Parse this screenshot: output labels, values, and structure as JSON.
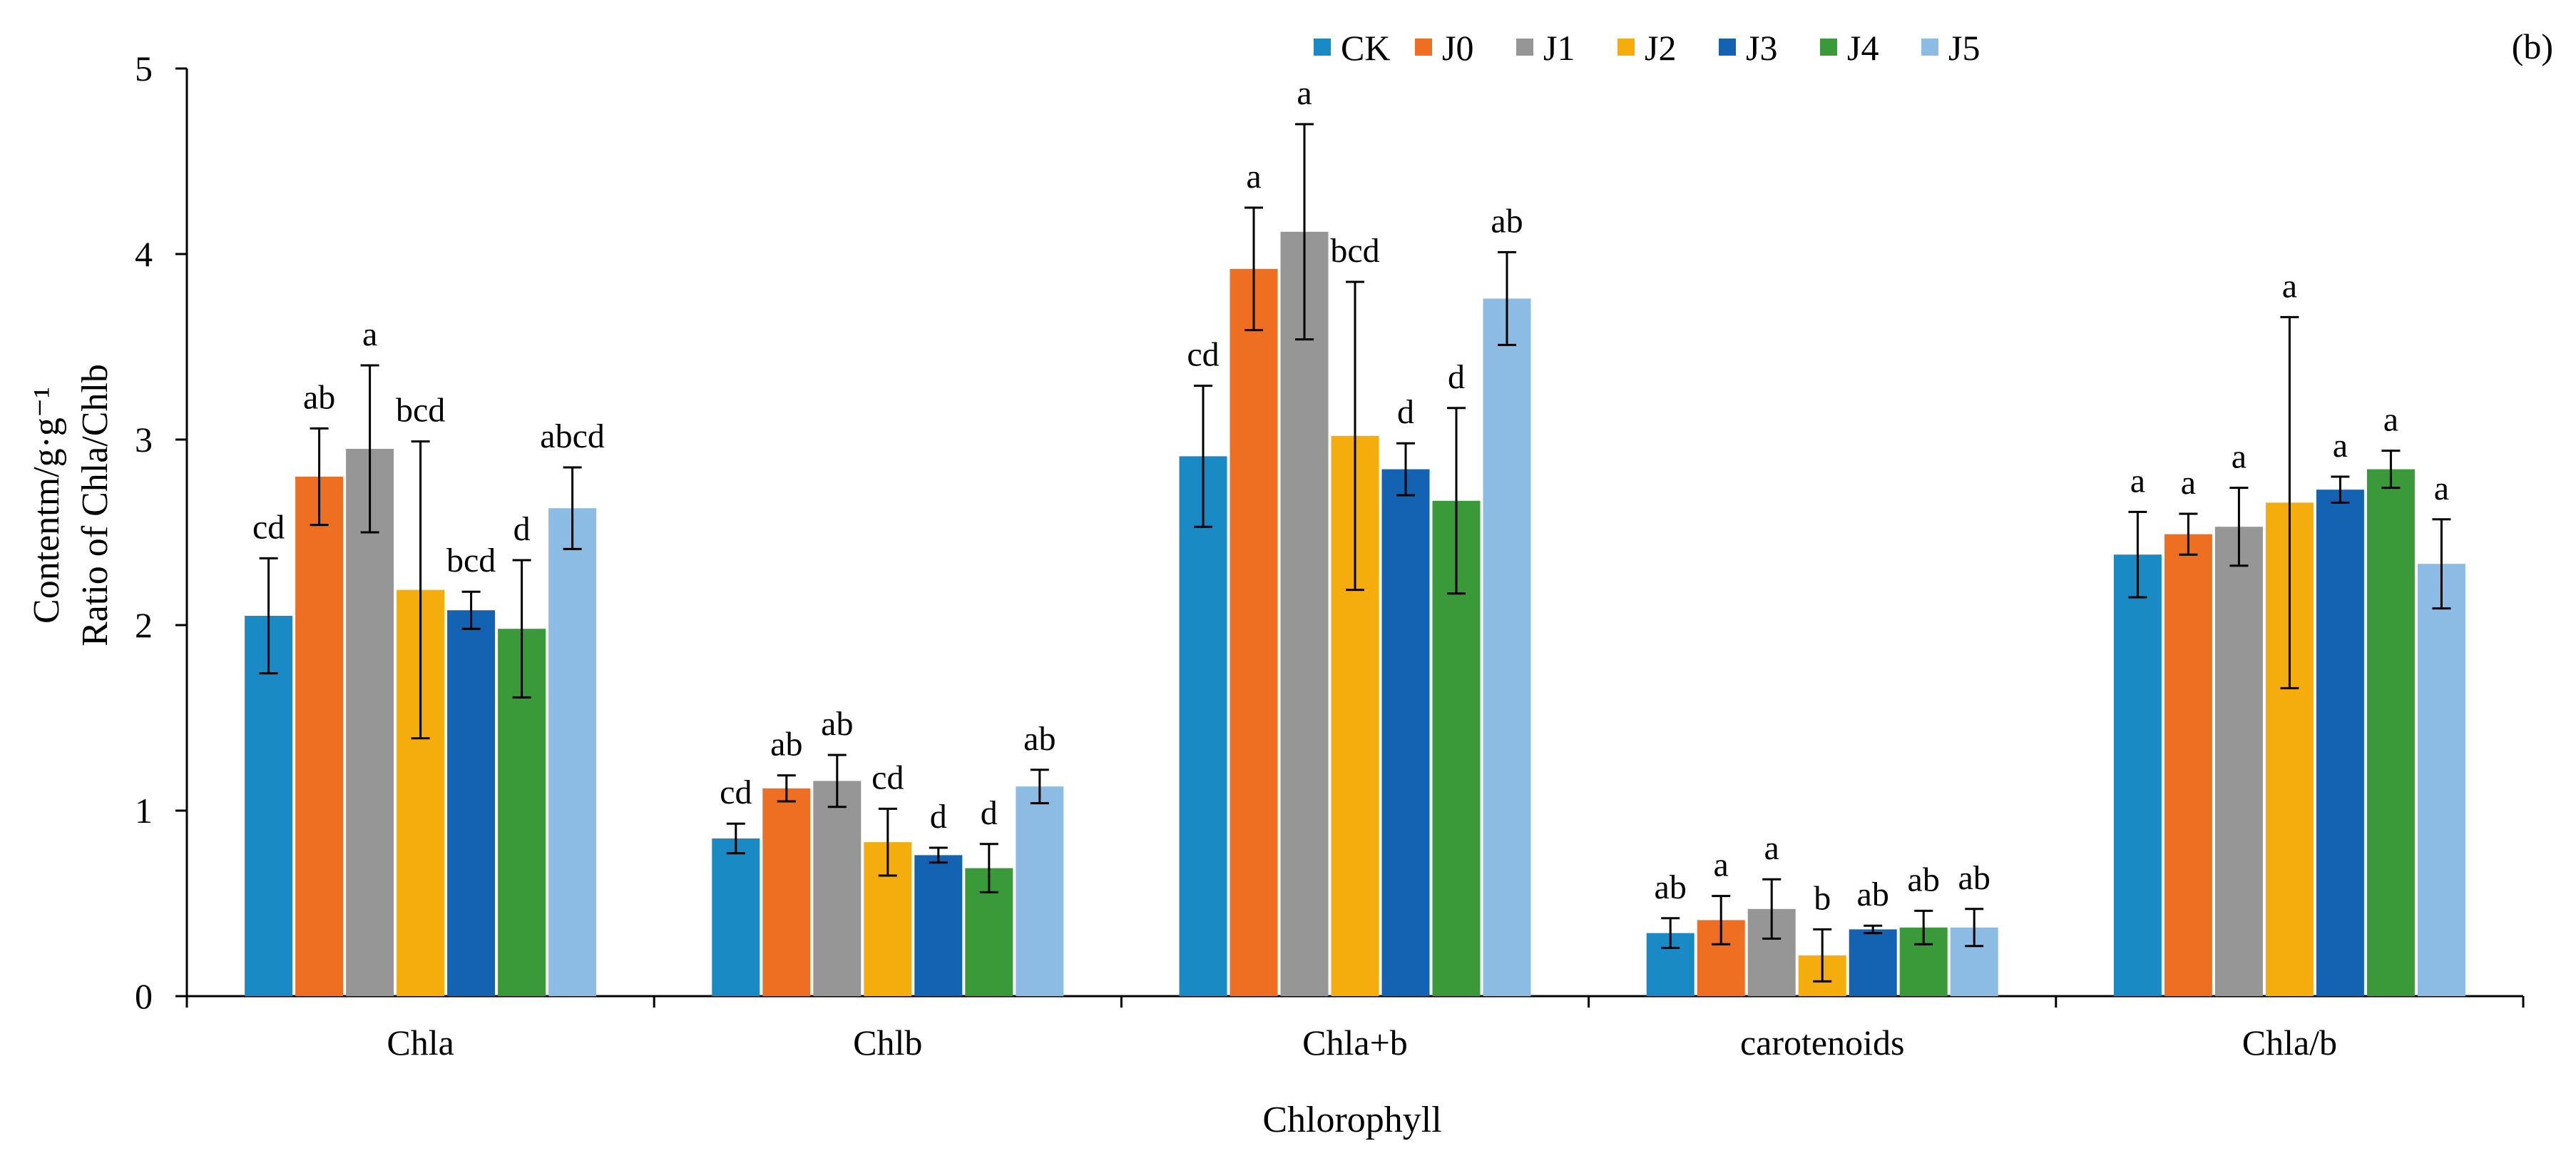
{
  "chart_data": {
    "type": "bar",
    "panel_label": "(b)",
    "xlabel": "Chlorophyll",
    "ylabel_lines": [
      "Contentm/g·g⁻¹",
      "Ratio of Chla/Chlb"
    ],
    "ylim": [
      0,
      5
    ],
    "yticks": [
      0,
      1,
      2,
      3,
      4,
      5
    ],
    "legend_position": "top-right",
    "categories": [
      "Chla",
      "Chlb",
      "Chla+b",
      "carotenoids",
      "Chla/b"
    ],
    "series": [
      {
        "name": "CK",
        "color": "#1a8ac4",
        "values": [
          2.05,
          0.85,
          2.91,
          0.34,
          2.38
        ],
        "errors": [
          0.31,
          0.08,
          0.38,
          0.08,
          0.23
        ],
        "labels": [
          "cd",
          "cd",
          "cd",
          "ab",
          "a"
        ]
      },
      {
        "name": "J0",
        "color": "#ee6f22",
        "values": [
          2.8,
          1.12,
          3.92,
          0.41,
          2.49
        ],
        "errors": [
          0.26,
          0.07,
          0.33,
          0.13,
          0.11
        ],
        "labels": [
          "ab",
          "ab",
          "a",
          "a",
          "a"
        ]
      },
      {
        "name": "J1",
        "color": "#969696",
        "values": [
          2.95,
          1.16,
          4.12,
          0.47,
          2.53
        ],
        "errors": [
          0.45,
          0.14,
          0.58,
          0.16,
          0.21
        ],
        "labels": [
          "a",
          "ab",
          "a",
          "a",
          "a"
        ]
      },
      {
        "name": "J2",
        "color": "#f4ad0c",
        "values": [
          2.19,
          0.83,
          3.02,
          0.22,
          2.66
        ],
        "errors": [
          0.8,
          0.18,
          0.83,
          0.14,
          1.0
        ],
        "labels": [
          "bcd",
          "cd",
          "bcd",
          "b",
          "a"
        ]
      },
      {
        "name": "J3",
        "color": "#1462b2",
        "values": [
          2.08,
          0.76,
          2.84,
          0.36,
          2.73
        ],
        "errors": [
          0.1,
          0.04,
          0.14,
          0.02,
          0.07
        ],
        "labels": [
          "bcd",
          "d",
          "d",
          "ab",
          "a"
        ]
      },
      {
        "name": "J4",
        "color": "#3a9a3a",
        "values": [
          1.98,
          0.69,
          2.67,
          0.37,
          2.84
        ],
        "errors": [
          0.37,
          0.13,
          0.5,
          0.09,
          0.1
        ],
        "labels": [
          "d",
          "d",
          "d",
          "ab",
          "a"
        ]
      },
      {
        "name": "J5",
        "color": "#8cbce3",
        "values": [
          2.63,
          1.13,
          3.76,
          0.37,
          2.33
        ],
        "errors": [
          0.22,
          0.09,
          0.25,
          0.1,
          0.24
        ],
        "labels": [
          "abcd",
          "ab",
          "ab",
          "ab",
          "a"
        ]
      }
    ]
  }
}
